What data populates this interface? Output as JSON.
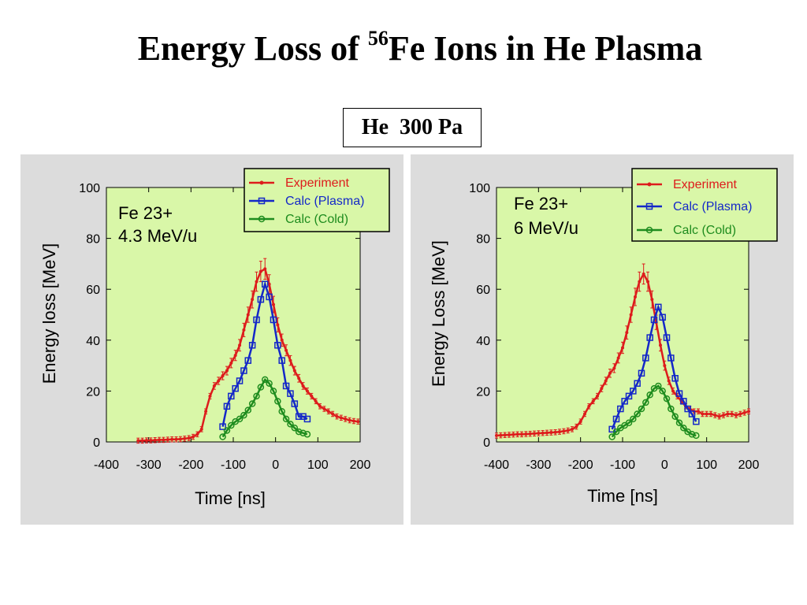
{
  "title": {
    "prefix": "Energy Loss of ",
    "superscript": "56",
    "suffix": "Fe Ions in He Plasma"
  },
  "condition_label": "He  300 Pa",
  "colors": {
    "panel_bg": "#dcdcdc",
    "plot_bg": "#d9f7a8",
    "experiment": "#dd1c1c",
    "plasma": "#1428c8",
    "cold": "#1e8c1e"
  },
  "chart_data": [
    {
      "type": "line",
      "annotation": [
        "Fe 23+",
        "4.3 MeV/u"
      ],
      "xlabel": "Time [ns]",
      "ylabel": "Energy loss [MeV]",
      "xlim": [
        -400,
        200
      ],
      "ylim": [
        0,
        100
      ],
      "xticks": [
        "-400",
        "-300",
        "-200",
        "-100",
        "0",
        "100",
        "200"
      ],
      "yticks": [
        "0",
        "20",
        "40",
        "60",
        "80",
        "100"
      ],
      "legend_position": "top-right",
      "series": [
        {
          "name": "Experiment",
          "marker": "dot",
          "errorbars": true,
          "x": [
            -325,
            -315,
            -305,
            -295,
            -285,
            -275,
            -265,
            -255,
            -245,
            -235,
            -225,
            -215,
            -205,
            -195,
            -185,
            -175,
            -165,
            -155,
            -145,
            -135,
            -125,
            -115,
            -105,
            -95,
            -85,
            -75,
            -65,
            -55,
            -45,
            -35,
            -25,
            -15,
            -5,
            5,
            15,
            25,
            35,
            45,
            55,
            65,
            75,
            85,
            95,
            105,
            115,
            125,
            135,
            145,
            155,
            165,
            175,
            185,
            195
          ],
          "y": [
            0.5,
            0.5,
            0.6,
            0.6,
            0.7,
            0.8,
            0.8,
            0.9,
            1,
            1,
            1.1,
            1.3,
            1.5,
            2,
            3,
            5,
            12,
            18,
            22,
            24,
            26,
            28,
            31,
            34,
            38,
            44,
            50,
            56,
            63,
            67,
            68,
            62,
            54,
            46,
            40,
            36,
            32,
            28,
            25,
            22,
            20,
            18,
            16,
            14,
            13,
            12,
            11,
            10,
            9.5,
            9,
            8.5,
            8.2,
            8
          ]
        },
        {
          "name": "Calc (Plasma)",
          "marker": "square",
          "x": [
            -125,
            -115,
            -105,
            -95,
            -85,
            -75,
            -65,
            -55,
            -45,
            -35,
            -25,
            -15,
            -5,
            5,
            15,
            25,
            35,
            45,
            55,
            65,
            75
          ],
          "y": [
            6,
            14,
            18,
            21,
            24,
            28,
            32,
            38,
            48,
            56,
            62,
            57,
            48,
            38,
            32,
            22,
            19,
            15,
            10,
            10,
            9
          ]
        },
        {
          "name": "Calc (Cold)",
          "marker": "circle",
          "x": [
            -125,
            -115,
            -105,
            -95,
            -85,
            -75,
            -65,
            -55,
            -45,
            -35,
            -25,
            -15,
            -5,
            5,
            15,
            25,
            35,
            45,
            55,
            65,
            75
          ],
          "y": [
            2,
            4.5,
            6.5,
            8,
            9,
            10.5,
            12.5,
            15,
            18,
            21.5,
            24.5,
            23,
            20,
            16,
            12,
            9,
            7,
            5.5,
            4,
            3.5,
            3
          ]
        }
      ]
    },
    {
      "type": "line",
      "annotation": [
        "Fe 23+",
        "6 MeV/u"
      ],
      "xlabel": "Time [ns]",
      "ylabel": "Energy Loss [MeV]",
      "xlim": [
        -400,
        200
      ],
      "ylim": [
        0,
        100
      ],
      "xticks": [
        "-400",
        "-300",
        "-200",
        "-100",
        "0",
        "100",
        "200"
      ],
      "yticks": [
        "0",
        "20",
        "40",
        "60",
        "80",
        "100"
      ],
      "legend_position": "top-right",
      "series": [
        {
          "name": "Experiment",
          "marker": "dot",
          "errorbars": true,
          "x": [
            -400,
            -390,
            -380,
            -370,
            -360,
            -350,
            -340,
            -330,
            -320,
            -310,
            -300,
            -290,
            -280,
            -270,
            -260,
            -250,
            -240,
            -230,
            -220,
            -210,
            -200,
            -190,
            -180,
            -170,
            -160,
            -150,
            -140,
            -130,
            -120,
            -110,
            -100,
            -90,
            -80,
            -70,
            -60,
            -50,
            -40,
            -30,
            -20,
            -10,
            0,
            10,
            20,
            30,
            40,
            50,
            60,
            70,
            80,
            90,
            100,
            110,
            120,
            130,
            140,
            150,
            160,
            170,
            180,
            190,
            200
          ],
          "y": [
            2.5,
            2.6,
            2.7,
            2.8,
            2.9,
            3,
            3,
            3.1,
            3.2,
            3.3,
            3.4,
            3.5,
            3.6,
            3.7,
            3.8,
            4,
            4.2,
            4.5,
            5,
            6,
            8,
            11,
            14,
            16,
            18,
            21,
            24,
            27,
            29,
            33,
            37,
            43,
            50,
            57,
            63,
            66,
            63,
            56,
            47,
            38,
            30,
            24,
            20,
            18,
            16,
            14,
            13,
            12,
            12,
            11,
            11,
            11,
            10.5,
            10,
            10.5,
            11,
            11,
            10.5,
            11,
            11.5,
            12
          ]
        },
        {
          "name": "Calc (Plasma)",
          "marker": "square",
          "x": [
            -125,
            -115,
            -105,
            -95,
            -85,
            -75,
            -65,
            -55,
            -45,
            -35,
            -25,
            -15,
            -5,
            5,
            15,
            25,
            35,
            45,
            55,
            65,
            75
          ],
          "y": [
            5,
            9,
            13,
            16,
            18,
            20,
            23,
            27,
            33,
            41,
            48,
            53,
            49,
            41,
            33,
            25,
            19,
            16,
            13,
            11,
            8
          ]
        },
        {
          "name": "Calc (Cold)",
          "marker": "circle",
          "x": [
            -125,
            -115,
            -105,
            -95,
            -85,
            -75,
            -65,
            -55,
            -45,
            -35,
            -25,
            -15,
            -5,
            5,
            15,
            25,
            35,
            45,
            55,
            65,
            75
          ],
          "y": [
            2,
            4,
            5.5,
            6.5,
            7.5,
            9,
            11,
            13,
            15.5,
            18.5,
            21,
            22,
            20,
            17,
            13,
            10,
            7.5,
            5.5,
            4,
            3,
            2.5
          ]
        }
      ]
    }
  ]
}
